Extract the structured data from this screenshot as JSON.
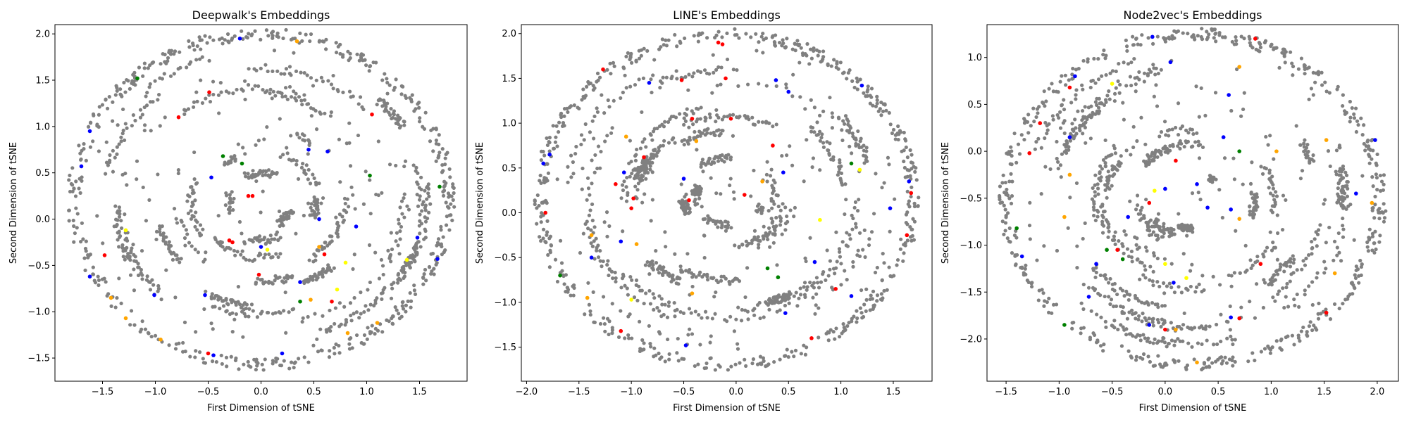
{
  "colors": {
    "background_points": "#808080",
    "class_colors": [
      "#0000ff",
      "#ff0000",
      "#ffa500",
      "#008000",
      "#ffff00"
    ]
  },
  "chart_data": [
    {
      "type": "scatter",
      "title": "Deepwalk's Embeddings",
      "xlabel": "First Dimension of tSNE",
      "ylabel": "Second Dimension of tSNE",
      "xlim": [
        -1.95,
        1.95
      ],
      "ylim": [
        -1.75,
        2.1
      ],
      "xticks": [
        -1.5,
        -1.0,
        -0.5,
        0.0,
        0.5,
        1.0,
        1.5
      ],
      "yticks": [
        -1.5,
        -1.0,
        -0.5,
        0.0,
        0.5,
        1.0,
        1.5,
        2.0
      ],
      "xtick_labels": [
        "−1.5",
        "−1.0",
        "−0.5",
        "0.0",
        "0.5",
        "1.0",
        "1.5"
      ],
      "ytick_labels": [
        "−1.5",
        "−1.0",
        "−0.5",
        "0.0",
        "0.5",
        "1.0",
        "1.5",
        "2.0"
      ],
      "colored_points": [
        {
          "x": -1.7,
          "y": 0.57,
          "c": "#0000ff"
        },
        {
          "x": -1.62,
          "y": 0.95,
          "c": "#0000ff"
        },
        {
          "x": -1.17,
          "y": 1.52,
          "c": "#008000"
        },
        {
          "x": -0.49,
          "y": 1.37,
          "c": "#ff0000"
        },
        {
          "x": -0.78,
          "y": 1.1,
          "c": "#ff0000"
        },
        {
          "x": -0.2,
          "y": 1.95,
          "c": "#0000ff"
        },
        {
          "x": 0.34,
          "y": 1.92,
          "c": "#ffa500"
        },
        {
          "x": 1.05,
          "y": 1.13,
          "c": "#ff0000"
        },
        {
          "x": 1.03,
          "y": 0.47,
          "c": "#008000"
        },
        {
          "x": 0.45,
          "y": 0.75,
          "c": "#0000ff"
        },
        {
          "x": 0.63,
          "y": 0.73,
          "c": "#0000ff"
        },
        {
          "x": -0.36,
          "y": 0.68,
          "c": "#008000"
        },
        {
          "x": -0.18,
          "y": 0.6,
          "c": "#008000"
        },
        {
          "x": -0.47,
          "y": 0.45,
          "c": "#0000ff"
        },
        {
          "x": -0.12,
          "y": 0.25,
          "c": "#ff0000"
        },
        {
          "x": -0.08,
          "y": 0.25,
          "c": "#ff0000"
        },
        {
          "x": -1.48,
          "y": -0.39,
          "c": "#ff0000"
        },
        {
          "x": -1.28,
          "y": -0.12,
          "c": "#ffff00"
        },
        {
          "x": -0.3,
          "y": -0.23,
          "c": "#ff0000"
        },
        {
          "x": -0.27,
          "y": -0.25,
          "c": "#ff0000"
        },
        {
          "x": 0.0,
          "y": -0.3,
          "c": "#0000ff"
        },
        {
          "x": 0.06,
          "y": -0.33,
          "c": "#ffff00"
        },
        {
          "x": 0.55,
          "y": -0.3,
          "c": "#ffa500"
        },
        {
          "x": 0.6,
          "y": -0.38,
          "c": "#ff0000"
        },
        {
          "x": 0.9,
          "y": -0.08,
          "c": "#0000ff"
        },
        {
          "x": 0.55,
          "y": 0.0,
          "c": "#0000ff"
        },
        {
          "x": 1.48,
          "y": -0.2,
          "c": "#0000ff"
        },
        {
          "x": 1.38,
          "y": -0.44,
          "c": "#ffff00"
        },
        {
          "x": 1.67,
          "y": -0.43,
          "c": "#0000ff"
        },
        {
          "x": 1.69,
          "y": 0.35,
          "c": "#008000"
        },
        {
          "x": 0.8,
          "y": -0.47,
          "c": "#ffff00"
        },
        {
          "x": 0.37,
          "y": -0.68,
          "c": "#0000ff"
        },
        {
          "x": 0.37,
          "y": -0.89,
          "c": "#008000"
        },
        {
          "x": 0.47,
          "y": -0.87,
          "c": "#ffa500"
        },
        {
          "x": 0.67,
          "y": -0.89,
          "c": "#ff0000"
        },
        {
          "x": 0.72,
          "y": -0.76,
          "c": "#ffff00"
        },
        {
          "x": -0.02,
          "y": -0.6,
          "c": "#ff0000"
        },
        {
          "x": -1.62,
          "y": -0.62,
          "c": "#0000ff"
        },
        {
          "x": -1.42,
          "y": -0.85,
          "c": "#ffa500"
        },
        {
          "x": -1.28,
          "y": -1.07,
          "c": "#ffa500"
        },
        {
          "x": -1.01,
          "y": -0.82,
          "c": "#0000ff"
        },
        {
          "x": -0.53,
          "y": -0.82,
          "c": "#0000ff"
        },
        {
          "x": -0.95,
          "y": -1.3,
          "c": "#ffa500"
        },
        {
          "x": -0.5,
          "y": -1.45,
          "c": "#ff0000"
        },
        {
          "x": -0.45,
          "y": -1.47,
          "c": "#0000ff"
        },
        {
          "x": 0.2,
          "y": -1.45,
          "c": "#0000ff"
        },
        {
          "x": 0.82,
          "y": -1.23,
          "c": "#ffa500"
        },
        {
          "x": 1.1,
          "y": -1.12,
          "c": "#ffa500"
        }
      ]
    },
    {
      "type": "scatter",
      "title": "LINE's Embeddings",
      "xlabel": "First Dimension of tSNE",
      "ylabel": "Second Dimension of tSNE",
      "xlim": [
        -2.05,
        1.87
      ],
      "ylim": [
        -1.88,
        2.1
      ],
      "xticks": [
        -2.0,
        -1.5,
        -1.0,
        -0.5,
        0.0,
        0.5,
        1.0,
        1.5
      ],
      "yticks": [
        -1.5,
        -1.0,
        -0.5,
        0.0,
        0.5,
        1.0,
        1.5,
        2.0
      ],
      "xtick_labels": [
        "−2.0",
        "−1.5",
        "−1.0",
        "−0.5",
        "0.0",
        "0.5",
        "1.0",
        "1.5"
      ],
      "ytick_labels": [
        "−1.5",
        "−1.0",
        "−0.5",
        "0.0",
        "0.5",
        "1.0",
        "1.5",
        "2.0"
      ],
      "colored_points": [
        {
          "x": -1.84,
          "y": 0.55,
          "c": "#0000ff"
        },
        {
          "x": -1.78,
          "y": 0.65,
          "c": "#0000ff"
        },
        {
          "x": -1.82,
          "y": 0.0,
          "c": "#ff0000"
        },
        {
          "x": -1.27,
          "y": 1.6,
          "c": "#ff0000"
        },
        {
          "x": -0.83,
          "y": 1.45,
          "c": "#0000ff"
        },
        {
          "x": -0.17,
          "y": 1.9,
          "c": "#ff0000"
        },
        {
          "x": -0.13,
          "y": 1.88,
          "c": "#ff0000"
        },
        {
          "x": -0.52,
          "y": 1.48,
          "c": "#ff0000"
        },
        {
          "x": -0.1,
          "y": 1.5,
          "c": "#ff0000"
        },
        {
          "x": 0.38,
          "y": 1.48,
          "c": "#0000ff"
        },
        {
          "x": 0.5,
          "y": 1.35,
          "c": "#0000ff"
        },
        {
          "x": 1.2,
          "y": 1.42,
          "c": "#0000ff"
        },
        {
          "x": -0.42,
          "y": 1.05,
          "c": "#ff0000"
        },
        {
          "x": -0.38,
          "y": 0.8,
          "c": "#ffa500"
        },
        {
          "x": -0.05,
          "y": 1.05,
          "c": "#ff0000"
        },
        {
          "x": -1.05,
          "y": 0.85,
          "c": "#ffa500"
        },
        {
          "x": -0.88,
          "y": 0.62,
          "c": "#ff0000"
        },
        {
          "x": -1.15,
          "y": 0.32,
          "c": "#ff0000"
        },
        {
          "x": -0.98,
          "y": 0.16,
          "c": "#ff0000"
        },
        {
          "x": -1.0,
          "y": 0.05,
          "c": "#ff0000"
        },
        {
          "x": -1.07,
          "y": 0.45,
          "c": "#0000ff"
        },
        {
          "x": -0.5,
          "y": 0.38,
          "c": "#0000ff"
        },
        {
          "x": -0.45,
          "y": 0.14,
          "c": "#ff0000"
        },
        {
          "x": 0.35,
          "y": 0.75,
          "c": "#ff0000"
        },
        {
          "x": 0.45,
          "y": 0.45,
          "c": "#0000ff"
        },
        {
          "x": 0.25,
          "y": 0.35,
          "c": "#ffa500"
        },
        {
          "x": 0.08,
          "y": 0.2,
          "c": "#ff0000"
        },
        {
          "x": 1.1,
          "y": 0.55,
          "c": "#008000"
        },
        {
          "x": 1.18,
          "y": 0.48,
          "c": "#ffff00"
        },
        {
          "x": 1.65,
          "y": 0.35,
          "c": "#0000ff"
        },
        {
          "x": 1.67,
          "y": 0.22,
          "c": "#ff0000"
        },
        {
          "x": 1.47,
          "y": 0.05,
          "c": "#0000ff"
        },
        {
          "x": 0.8,
          "y": -0.08,
          "c": "#ffff00"
        },
        {
          "x": -1.38,
          "y": -0.25,
          "c": "#ffa500"
        },
        {
          "x": -1.38,
          "y": -0.5,
          "c": "#0000ff"
        },
        {
          "x": -1.1,
          "y": -0.32,
          "c": "#0000ff"
        },
        {
          "x": -0.95,
          "y": -0.35,
          "c": "#ffa500"
        },
        {
          "x": -1.68,
          "y": -0.7,
          "c": "#008000"
        },
        {
          "x": -1.42,
          "y": -0.95,
          "c": "#ffa500"
        },
        {
          "x": -1.0,
          "y": -0.97,
          "c": "#ffff00"
        },
        {
          "x": -0.42,
          "y": -0.9,
          "c": "#ffa500"
        },
        {
          "x": 0.3,
          "y": -0.62,
          "c": "#008000"
        },
        {
          "x": 0.4,
          "y": -0.72,
          "c": "#008000"
        },
        {
          "x": 0.75,
          "y": -0.55,
          "c": "#0000ff"
        },
        {
          "x": 0.95,
          "y": -0.85,
          "c": "#ff0000"
        },
        {
          "x": 1.1,
          "y": -0.93,
          "c": "#0000ff"
        },
        {
          "x": 1.63,
          "y": -0.25,
          "c": "#ff0000"
        },
        {
          "x": 0.47,
          "y": -1.12,
          "c": "#0000ff"
        },
        {
          "x": 0.72,
          "y": -1.4,
          "c": "#ff0000"
        },
        {
          "x": -1.1,
          "y": -1.32,
          "c": "#ff0000"
        },
        {
          "x": -0.48,
          "y": -1.48,
          "c": "#0000ff"
        }
      ]
    },
    {
      "type": "scatter",
      "title": "Node2vec's Embeddings",
      "xlabel": "First Dimension of tSNE",
      "ylabel": "Second Dimension of tSNE",
      "xlim": [
        -1.68,
        2.2
      ],
      "ylim": [
        -2.45,
        1.35
      ],
      "xticks": [
        -1.5,
        -1.0,
        -0.5,
        0.0,
        0.5,
        1.0,
        1.5,
        2.0
      ],
      "yticks": [
        -2.0,
        -1.5,
        -1.0,
        -0.5,
        0.0,
        0.5,
        1.0
      ],
      "xtick_labels": [
        "−1.5",
        "−1.0",
        "−0.5",
        "0.0",
        "0.5",
        "1.0",
        "1.5",
        "2.0"
      ],
      "ytick_labels": [
        "−2.0",
        "−1.5",
        "−1.0",
        "−0.5",
        "0.0",
        "0.5",
        "1.0"
      ],
      "colored_points": [
        {
          "x": -0.12,
          "y": 1.22,
          "c": "#0000ff"
        },
        {
          "x": 0.85,
          "y": 1.2,
          "c": "#ff0000"
        },
        {
          "x": -0.85,
          "y": 0.8,
          "c": "#0000ff"
        },
        {
          "x": -0.5,
          "y": 0.72,
          "c": "#ffff00"
        },
        {
          "x": -0.9,
          "y": 0.68,
          "c": "#ff0000"
        },
        {
          "x": 0.7,
          "y": 0.9,
          "c": "#ffa500"
        },
        {
          "x": 0.6,
          "y": 0.6,
          "c": "#0000ff"
        },
        {
          "x": 0.05,
          "y": 0.95,
          "c": "#0000ff"
        },
        {
          "x": -1.18,
          "y": 0.3,
          "c": "#ff0000"
        },
        {
          "x": -0.9,
          "y": 0.15,
          "c": "#0000ff"
        },
        {
          "x": -1.28,
          "y": -0.02,
          "c": "#ff0000"
        },
        {
          "x": -0.9,
          "y": -0.25,
          "c": "#ffa500"
        },
        {
          "x": 0.1,
          "y": -0.1,
          "c": "#ff0000"
        },
        {
          "x": 0.3,
          "y": -0.35,
          "c": "#0000ff"
        },
        {
          "x": 0.55,
          "y": 0.15,
          "c": "#0000ff"
        },
        {
          "x": 0.7,
          "y": 0.0,
          "c": "#008000"
        },
        {
          "x": 1.05,
          "y": 0.0,
          "c": "#ffa500"
        },
        {
          "x": 1.52,
          "y": 0.12,
          "c": "#ffa500"
        },
        {
          "x": 1.98,
          "y": 0.12,
          "c": "#0000ff"
        },
        {
          "x": -0.1,
          "y": -0.42,
          "c": "#ffff00"
        },
        {
          "x": 0.0,
          "y": -0.4,
          "c": "#0000ff"
        },
        {
          "x": -0.35,
          "y": -0.7,
          "c": "#0000ff"
        },
        {
          "x": -0.15,
          "y": -0.55,
          "c": "#ff0000"
        },
        {
          "x": 0.4,
          "y": -0.6,
          "c": "#0000ff"
        },
        {
          "x": 0.62,
          "y": -0.62,
          "c": "#0000ff"
        },
        {
          "x": 0.7,
          "y": -0.72,
          "c": "#ffa500"
        },
        {
          "x": 1.8,
          "y": -0.45,
          "c": "#0000ff"
        },
        {
          "x": 1.95,
          "y": -0.55,
          "c": "#ffa500"
        },
        {
          "x": -1.4,
          "y": -0.82,
          "c": "#008000"
        },
        {
          "x": -1.35,
          "y": -1.12,
          "c": "#0000ff"
        },
        {
          "x": -0.95,
          "y": -0.7,
          "c": "#ffa500"
        },
        {
          "x": -0.55,
          "y": -1.05,
          "c": "#008000"
        },
        {
          "x": -0.45,
          "y": -1.05,
          "c": "#ff0000"
        },
        {
          "x": -0.4,
          "y": -1.15,
          "c": "#008000"
        },
        {
          "x": -0.65,
          "y": -1.2,
          "c": "#0000ff"
        },
        {
          "x": 0.0,
          "y": -1.2,
          "c": "#ffff00"
        },
        {
          "x": 0.2,
          "y": -1.35,
          "c": "#ffff00"
        },
        {
          "x": 0.08,
          "y": -1.4,
          "c": "#0000ff"
        },
        {
          "x": -0.72,
          "y": -1.55,
          "c": "#0000ff"
        },
        {
          "x": 0.9,
          "y": -1.2,
          "c": "#ff0000"
        },
        {
          "x": 1.6,
          "y": -1.3,
          "c": "#ffa500"
        },
        {
          "x": 1.52,
          "y": -1.72,
          "c": "#ff0000"
        },
        {
          "x": -0.95,
          "y": -1.85,
          "c": "#008000"
        },
        {
          "x": -0.15,
          "y": -1.85,
          "c": "#0000ff"
        },
        {
          "x": 0.0,
          "y": -1.9,
          "c": "#ff0000"
        },
        {
          "x": 0.1,
          "y": -1.9,
          "c": "#ffa500"
        },
        {
          "x": 0.62,
          "y": -1.77,
          "c": "#0000ff"
        },
        {
          "x": 0.7,
          "y": -1.78,
          "c": "#ff0000"
        },
        {
          "x": 0.3,
          "y": -2.25,
          "c": "#ffa500"
        }
      ]
    }
  ]
}
